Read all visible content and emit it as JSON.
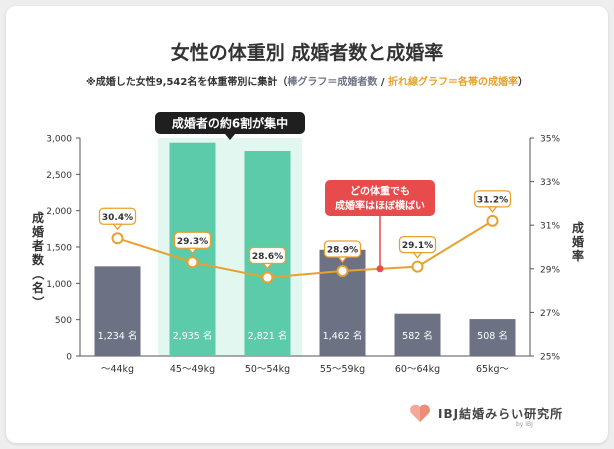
{
  "header": {
    "title": "女性の体重別 成婚者数と成婚率",
    "sub_prefix": "※成婚した女性9,542名を体重帯別に集計（",
    "sub_bar": "棒グラフ＝成婚者数",
    "sub_sep": " / ",
    "sub_line": "折れ線グラフ＝各帯の成婚率",
    "sub_suffix": "）"
  },
  "colors": {
    "bar_default": "#6c7283",
    "bar_highlight": "#5ccbaa",
    "highlight_band": "#e3f7f1",
    "line": "#e7a12e",
    "callout_red": "#e84b4b",
    "callout_dark": "#1f1f1f"
  },
  "chart_data": {
    "type": "bar",
    "categories": [
      "〜44kg",
      "45〜49kg",
      "50〜54kg",
      "55〜59kg",
      "60〜64kg",
      "65kg〜"
    ],
    "bar_axis": {
      "label": "成婚者数（名）",
      "ylim": [
        0,
        3000
      ],
      "ticks": [
        "0",
        "500",
        "1,000",
        "1,500",
        "2,000",
        "2,500",
        "3,000"
      ]
    },
    "rate_axis": {
      "label": "成婚率",
      "ylim": [
        25,
        35
      ],
      "ticks": [
        "25%",
        "27%",
        "29%",
        "31%",
        "33%",
        "35%"
      ]
    },
    "series": [
      {
        "name": "成婚者数",
        "type": "bar",
        "values": [
          1234,
          2935,
          2821,
          1462,
          582,
          508
        ],
        "labels": [
          "1,234 名",
          "2,935 名",
          "2,821 名",
          "1,462 名",
          "582 名",
          "508 名"
        ],
        "highlighted": [
          false,
          true,
          true,
          false,
          false,
          false
        ]
      },
      {
        "name": "成婚率",
        "type": "line",
        "values": [
          30.4,
          29.3,
          28.6,
          28.9,
          29.1,
          31.2
        ],
        "labels": [
          "30.4%",
          "29.3%",
          "28.6%",
          "28.9%",
          "29.1%",
          "31.2%"
        ]
      }
    ],
    "annotations": {
      "highlight_label": "成婚者の約6割が集中",
      "callout_line1": "どの体重でも",
      "callout_line2": "成婚率はほぼ横ばい"
    },
    "grid": false
  },
  "logo": {
    "name": "IBJ結婚みらい研究所",
    "by": "by IBJ"
  }
}
